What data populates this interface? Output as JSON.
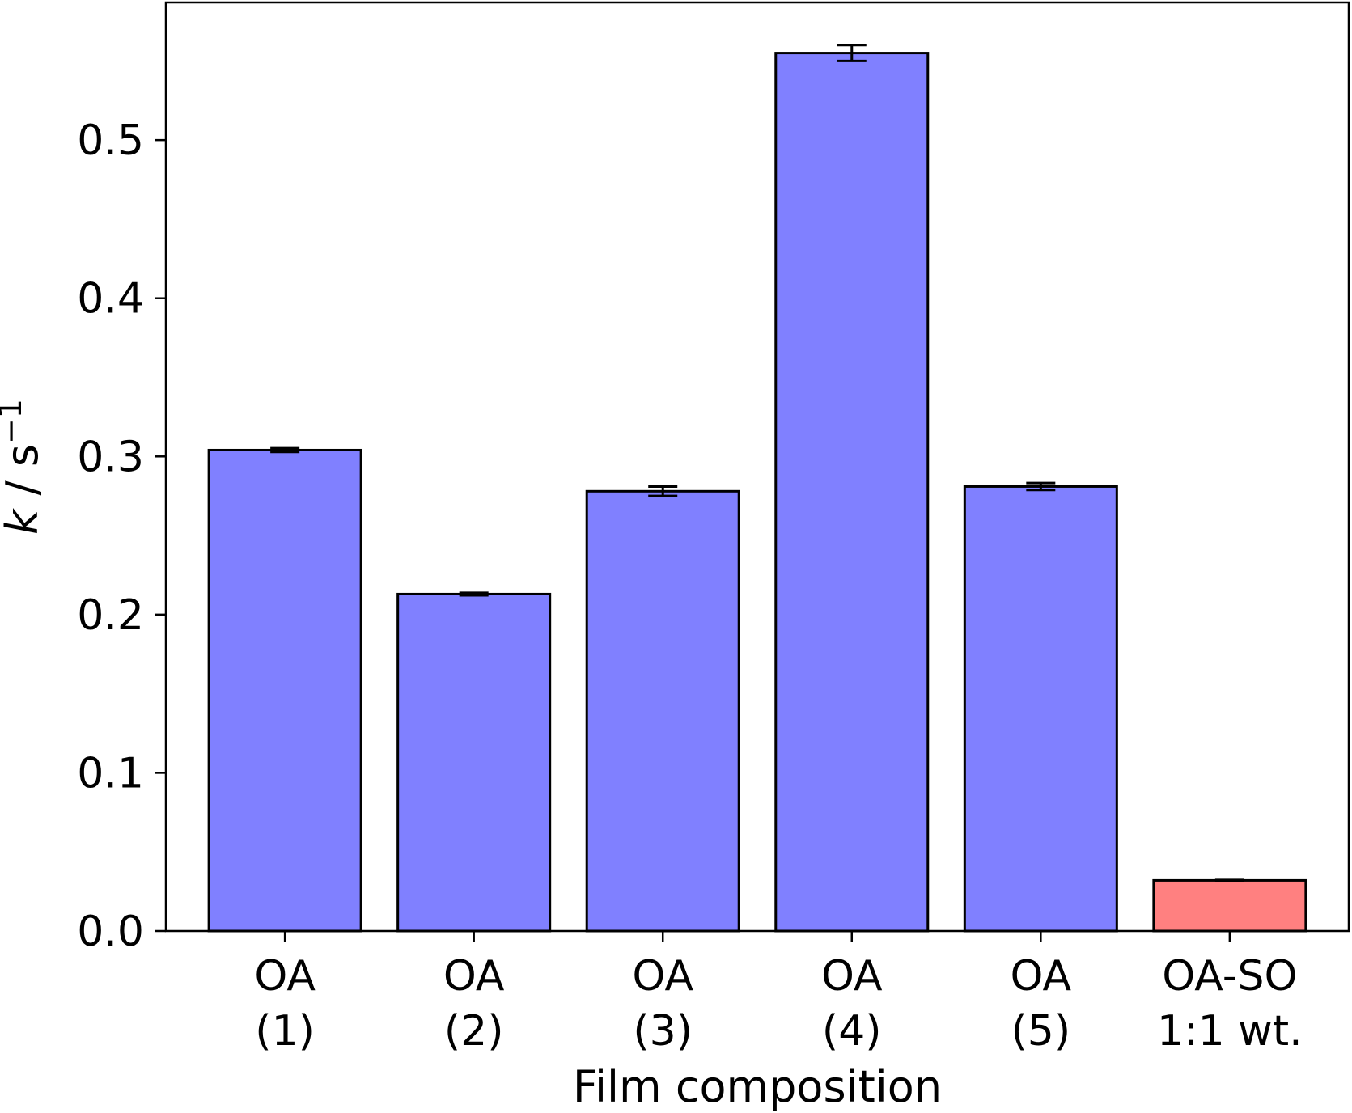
{
  "chart_data": {
    "type": "bar",
    "title": "",
    "xlabel": "Film composition",
    "ylabel": {
      "symbol": "k",
      "unit": " / s",
      "exponent": "−1"
    },
    "ylim": [
      0,
      0.587
    ],
    "yticks": [
      "0.0",
      "0.1",
      "0.2",
      "0.3",
      "0.4",
      "0.5"
    ],
    "categories": [
      [
        "OA",
        "(1)"
      ],
      [
        "OA",
        "(2)"
      ],
      [
        "OA",
        "(3)"
      ],
      [
        "OA",
        "(4)"
      ],
      [
        "OA",
        "(5)"
      ],
      [
        "OA-SO",
        "1:1 wt."
      ]
    ],
    "values": [
      0.304,
      0.213,
      0.278,
      0.555,
      0.281,
      0.032
    ],
    "errors": [
      0.0012,
      0.0008,
      0.003,
      0.005,
      0.0022,
      0.0003
    ],
    "colors": [
      "#8080ff",
      "#8080ff",
      "#8080ff",
      "#8080ff",
      "#8080ff",
      "#ff8080"
    ],
    "edge_color": "#000000",
    "grid": false
  }
}
